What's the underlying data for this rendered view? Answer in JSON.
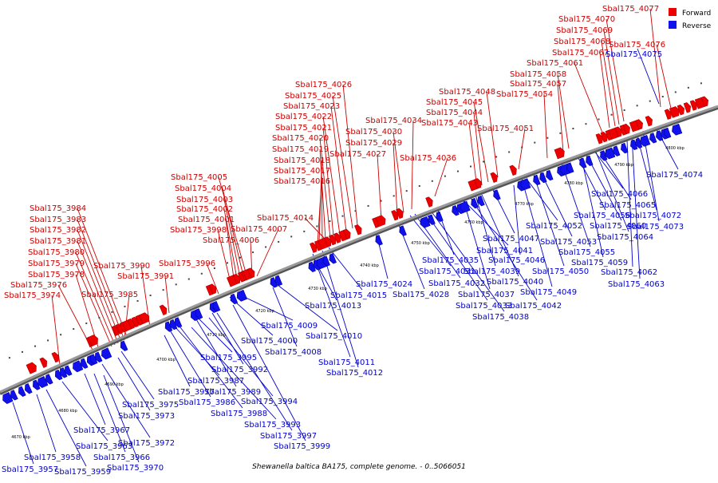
{
  "caption": "Shewanella baltica BA175, complete genome. - 0..5066051",
  "legend": {
    "forward": "Forward",
    "reverse": "Reverse"
  },
  "colors": {
    "forward": "#ee0000",
    "forward_dark": "#aa0000",
    "reverse": "#1111ee",
    "reverse_dark": "#000099",
    "backbone": "#8c8c8c",
    "forward_line": "#cc0000",
    "reverse_line": "#0000cc"
  },
  "ticks": [
    "4670 kbp",
    "4680 kbp",
    "4690 kbp",
    "4700 kbp",
    "4710 kbp",
    "4720 kbp",
    "4730 kbp",
    "4740 kbp",
    "4750 kbp",
    "4760 kbp",
    "4770 kbp",
    "4780 kbp",
    "4790 kbp",
    "4800 kbp"
  ],
  "forward_labels": [
    "Sbal175_4077",
    "Sbal175_4070",
    "Sbal175_4069",
    "Sbal175_4068",
    "Sbal175_4076",
    "Sbal175_4067",
    "Sbal175_4061",
    "Sbal175_4058",
    "Sbal175_4057",
    "Sbal175_4054",
    "Sbal175_4048",
    "Sbal175_4045",
    "Sbal175_4044",
    "Sbal175_4043",
    "Sbal175_4051",
    "Sbal175_4036",
    "Sbal175_4034",
    "Sbal175_4030",
    "Sbal175_4029",
    "Sbal175_4027",
    "Sbal175_4026",
    "Sbal175_4025",
    "Sbal175_4023",
    "Sbal175_4022",
    "Sbal175_4021",
    "Sbal175_4020",
    "Sbal175_4019",
    "Sbal175_4018",
    "Sbal175_4017",
    "Sbal175_4016",
    "Sbal175_4014",
    "Sbal175_4007",
    "Sbal175_4006",
    "Sbal175_4005",
    "Sbal175_4004",
    "Sbal175_4003",
    "Sbal175_4002",
    "Sbal175_4001",
    "Sbal175_3998",
    "Sbal175_3996",
    "Sbal175_3990",
    "Sbal175_3991",
    "Sbal175_3985",
    "Sbal175_3984",
    "Sbal175_3983",
    "Sbal175_3982",
    "Sbal175_3981",
    "Sbal175_3980",
    "Sbal175_3979",
    "Sbal175_3978",
    "Sbal175_3976",
    "Sbal175_3974"
  ],
  "reverse_labels": [
    "Sbal175_4075",
    "Sbal175_4074",
    "Sbal175_4066",
    "Sbal175_4065",
    "Sbal175_4056",
    "Sbal175_4060",
    "Sbal175_4072",
    "Sbal175_4073",
    "Sbal175_4052",
    "Sbal175_4064",
    "Sbal175_4047",
    "Sbal175_4053",
    "Sbal175_4041",
    "Sbal175_4055",
    "Sbal175_4035",
    "Sbal175_4046",
    "Sbal175_4059",
    "Sbal175_4031",
    "Sbal175_4039",
    "Sbal175_4050",
    "Sbal175_4062",
    "Sbal175_4024",
    "Sbal175_4032",
    "Sbal175_4040",
    "Sbal175_4063",
    "Sbal175_4015",
    "Sbal175_4028",
    "Sbal175_4037",
    "Sbal175_4049",
    "Sbal175_4013",
    "Sbal175_4033",
    "Sbal175_4042",
    "Sbal175_4038",
    "Sbal175_4009",
    "Sbal175_4010",
    "Sbal175_4000",
    "Sbal175_4008",
    "Sbal175_3995",
    "Sbal175_3992",
    "Sbal175_4011",
    "Sbal175_4012",
    "Sbal175_3987",
    "Sbal175_3977",
    "Sbal175_3989",
    "Sbal175_3975",
    "Sbal175_3986",
    "Sbal175_3994",
    "Sbal175_3973",
    "Sbal175_3988",
    "Sbal175_3993",
    "Sbal175_3967",
    "Sbal175_3997",
    "Sbal175_3972",
    "Sbal175_3963",
    "Sbal175_3999",
    "Sbal175_3958",
    "Sbal175_3966",
    "Sbal175_3957",
    "Sbal175_3959",
    "Sbal175_3970"
  ]
}
